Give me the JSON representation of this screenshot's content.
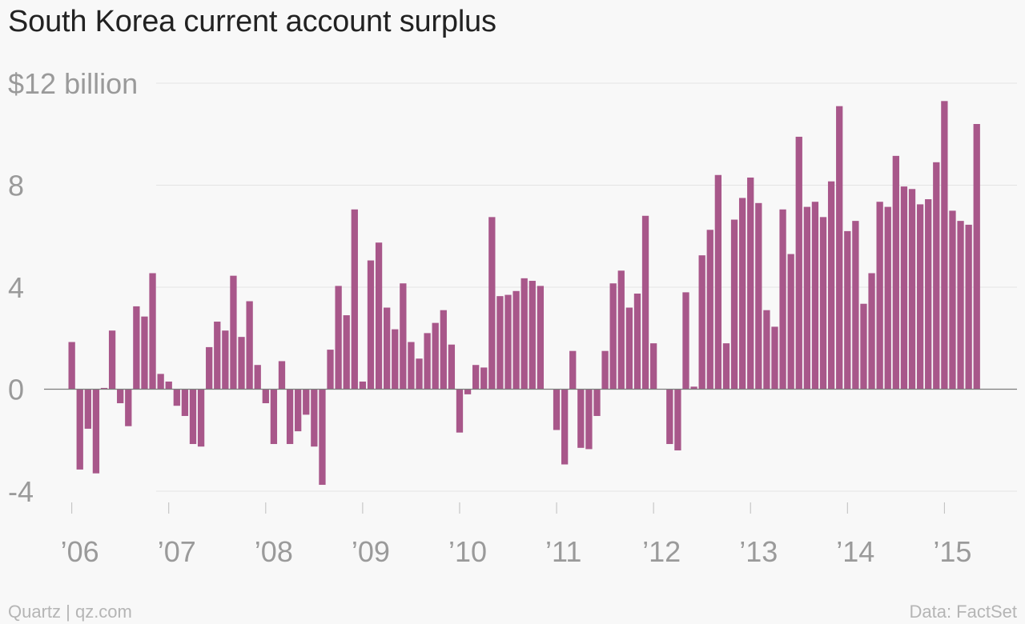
{
  "chart_data": {
    "type": "bar",
    "title": "South Korea current account surplus",
    "ylim": [
      -4,
      12
    ],
    "y_ticks": [
      {
        "value": 12,
        "label": "$12 billion"
      },
      {
        "value": 8,
        "label": "8"
      },
      {
        "value": 4,
        "label": "4"
      },
      {
        "value": 0,
        "label": "0"
      },
      {
        "value": -4,
        "label": "-4"
      }
    ],
    "x_ticks": [
      {
        "index": 0,
        "label": "’06"
      },
      {
        "index": 12,
        "label": "’07"
      },
      {
        "index": 24,
        "label": "’08"
      },
      {
        "index": 36,
        "label": "’09"
      },
      {
        "index": 48,
        "label": "’10"
      },
      {
        "index": 60,
        "label": "’11"
      },
      {
        "index": 72,
        "label": "’12"
      },
      {
        "index": 84,
        "label": "’13"
      },
      {
        "index": 96,
        "label": "’14"
      },
      {
        "index": 108,
        "label": "’15"
      }
    ],
    "grid": true,
    "bar_color": "#a8578a",
    "series": [
      {
        "values": [
          1.85,
          -3.15,
          -1.55,
          -3.3,
          0.05,
          2.3,
          -0.55,
          -1.45,
          3.25,
          2.85,
          4.55,
          0.6,
          0.3,
          -0.65,
          -1.05,
          -2.15,
          -2.25,
          1.65,
          2.65,
          2.3,
          4.45,
          2.05,
          3.45,
          0.95,
          -0.55,
          -2.15,
          1.1,
          -2.15,
          -1.65,
          -1.0,
          -2.25,
          -3.75,
          1.55,
          4.05,
          2.9,
          7.05,
          0.3,
          5.05,
          5.75,
          3.2,
          2.35,
          4.15,
          1.85,
          1.2,
          2.2,
          2.6,
          3.1,
          1.75,
          -1.7,
          -0.2,
          0.95,
          0.85,
          6.75,
          3.65,
          3.7,
          3.85,
          4.35,
          4.25,
          4.05,
          0.0,
          -1.6,
          -2.95,
          1.5,
          -2.3,
          -2.35,
          -1.05,
          1.5,
          4.15,
          4.65,
          3.2,
          3.75,
          6.8,
          1.8,
          0.0,
          -2.15,
          -2.4,
          3.8,
          0.1,
          5.25,
          6.25,
          8.4,
          1.8,
          6.65,
          7.5,
          8.3,
          7.3,
          3.1,
          2.45,
          7.05,
          5.3,
          9.9,
          7.15,
          7.35,
          6.75,
          8.15,
          11.1,
          6.2,
          6.6,
          3.35,
          4.55,
          7.35,
          7.15,
          9.15,
          7.95,
          7.85,
          7.25,
          7.45,
          8.9,
          11.3,
          7.0,
          6.6,
          6.45,
          10.4
        ]
      }
    ]
  },
  "footer": {
    "source": "Quartz | qz.com",
    "data_credit": "Data: FactSet"
  }
}
